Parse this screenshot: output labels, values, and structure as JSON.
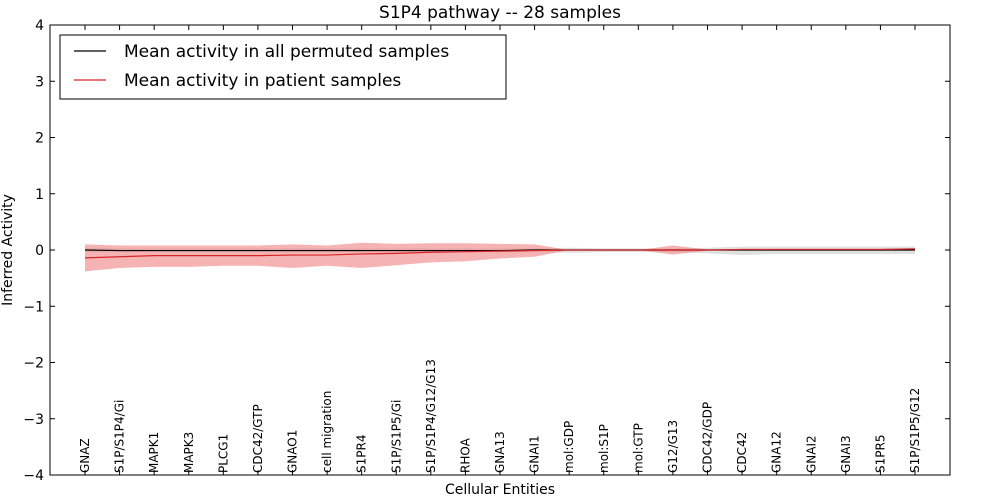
{
  "chart_data": {
    "type": "line",
    "title": "S1P4 pathway -- 28 samples",
    "xlabel": "Cellular Entities",
    "ylabel": "Inferred Activity",
    "ylim": [
      -4,
      4
    ],
    "yticks": [
      4,
      3,
      2,
      1,
      0,
      -1,
      -2,
      -3,
      -4
    ],
    "ytick_labels": [
      "4",
      "3",
      "2",
      "1",
      "0",
      "−1",
      "−2",
      "−3",
      "−4"
    ],
    "grid": false,
    "legend_position": "top-left",
    "categories": [
      "GNAZ",
      "S1P/S1P4/Gi",
      "MAPK1",
      "MAPK3",
      "PLCG1",
      "CDC42/GTP",
      "GNAO1",
      "cell migration",
      "S1PR4",
      "S1P/S1P5/Gi",
      "S1P/S1P4/G12/G13",
      "RHOA",
      "GNA13",
      "GNAI1",
      "mol:GDP",
      "mol:S1P",
      "mol:GTP",
      "G12/G13",
      "CDC42/GDP",
      "CDC42",
      "GNA12",
      "GNAI2",
      "GNAI3",
      "S1PR5",
      "S1P/S1P5/G12"
    ],
    "series": [
      {
        "name": "Mean activity in all permuted samples",
        "color": "#000000",
        "values": [
          0.0,
          -0.01,
          -0.01,
          -0.01,
          -0.01,
          -0.01,
          -0.01,
          -0.01,
          -0.01,
          -0.01,
          -0.01,
          -0.01,
          -0.01,
          0.0,
          0.0,
          0.0,
          0.0,
          0.0,
          0.0,
          0.0,
          0.0,
          0.0,
          0.0,
          0.0,
          0.0
        ],
        "band_upper": [
          0.04,
          0.03,
          0.03,
          0.03,
          0.03,
          0.03,
          0.03,
          0.03,
          0.03,
          0.03,
          0.03,
          0.03,
          0.03,
          0.03,
          0.04,
          0.03,
          0.03,
          0.03,
          0.04,
          0.06,
          0.06,
          0.06,
          0.06,
          0.06,
          0.06
        ],
        "band_lower": [
          -0.04,
          -0.04,
          -0.04,
          -0.04,
          -0.04,
          -0.04,
          -0.04,
          -0.04,
          -0.04,
          -0.04,
          -0.04,
          -0.04,
          -0.04,
          -0.04,
          -0.05,
          -0.04,
          -0.04,
          -0.04,
          -0.06,
          -0.09,
          -0.07,
          -0.07,
          -0.07,
          -0.07,
          -0.07
        ],
        "band_color": "#bbbbbb"
      },
      {
        "name": "Mean activity in patient samples",
        "color": "#d62728",
        "values": [
          -0.14,
          -0.12,
          -0.1,
          -0.1,
          -0.1,
          -0.1,
          -0.09,
          -0.09,
          -0.07,
          -0.06,
          -0.04,
          -0.03,
          -0.02,
          -0.01,
          0.0,
          0.0,
          0.0,
          0.0,
          0.0,
          0.01,
          0.01,
          0.01,
          0.01,
          0.01,
          0.02
        ],
        "band_upper": [
          0.1,
          0.08,
          0.08,
          0.08,
          0.08,
          0.08,
          0.1,
          0.08,
          0.13,
          0.11,
          0.12,
          0.12,
          0.11,
          0.1,
          0.0,
          0.0,
          0.0,
          0.08,
          0.01,
          0.02,
          0.02,
          0.02,
          0.02,
          0.02,
          0.03
        ],
        "band_lower": [
          -0.38,
          -0.32,
          -0.3,
          -0.3,
          -0.28,
          -0.28,
          -0.32,
          -0.28,
          -0.32,
          -0.27,
          -0.22,
          -0.2,
          -0.15,
          -0.12,
          0.0,
          0.0,
          0.0,
          -0.08,
          -0.01,
          0.0,
          0.0,
          0.0,
          0.0,
          0.0,
          0.0
        ],
        "band_color": "#f08080"
      }
    ]
  }
}
